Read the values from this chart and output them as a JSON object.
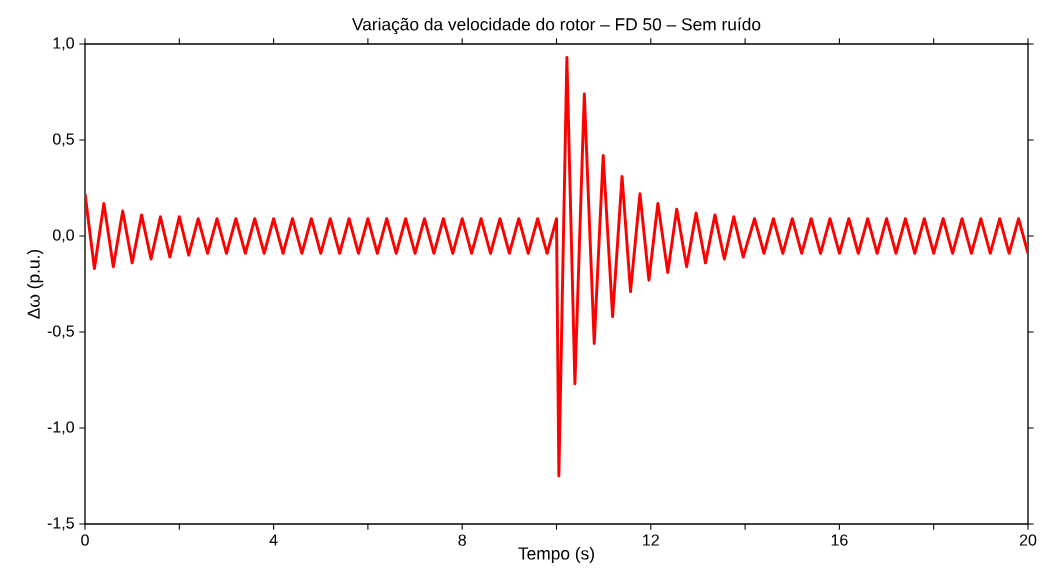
{
  "chart_data": {
    "type": "line",
    "title": "Variação da velocidade do rotor – FD 50 – Sem ruído",
    "xlabel": "Tempo (s)",
    "ylabel": "Δω (p.u.)",
    "x": [
      0,
      0.2,
      0.4,
      0.6,
      0.8,
      1.0,
      1.2,
      1.4,
      1.6,
      1.8,
      2.0,
      2.2,
      2.4,
      2.6,
      2.8,
      3.0,
      3.2,
      3.4,
      3.6,
      3.8,
      4.0,
      4.2,
      4.4,
      4.6,
      4.8,
      5.0,
      5.2,
      5.4,
      5.6,
      5.8,
      6.0,
      6.2,
      6.4,
      6.6,
      6.8,
      7.0,
      7.2,
      7.4,
      7.6,
      7.8,
      8.0,
      8.2,
      8.4,
      8.6,
      8.8,
      9.0,
      9.2,
      9.4,
      9.6,
      9.8,
      10.0,
      10.05,
      10.22,
      10.39,
      10.59,
      10.8,
      10.99,
      11.19,
      11.39,
      11.57,
      11.77,
      11.96,
      12.15,
      12.36,
      12.55,
      12.76,
      12.96,
      13.16,
      13.36,
      13.56,
      13.76,
      13.96,
      14.2,
      14.4,
      14.6,
      14.8,
      15.0,
      15.2,
      15.4,
      15.6,
      15.8,
      16.0,
      16.2,
      16.4,
      16.6,
      16.8,
      17.0,
      17.2,
      17.4,
      17.6,
      17.8,
      18.0,
      18.2,
      18.4,
      18.6,
      18.8,
      19.0,
      19.2,
      19.4,
      19.6,
      19.8,
      20.0
    ],
    "series": [
      {
        "color": "#ff0000",
        "values": [
          0.22,
          -0.17,
          0.17,
          -0.16,
          0.13,
          -0.14,
          0.11,
          -0.12,
          0.1,
          -0.11,
          0.1,
          -0.1,
          0.09,
          -0.09,
          0.09,
          -0.09,
          0.09,
          -0.09,
          0.09,
          -0.09,
          0.09,
          -0.09,
          0.09,
          -0.09,
          0.09,
          -0.09,
          0.09,
          -0.09,
          0.09,
          -0.09,
          0.09,
          -0.09,
          0.09,
          -0.09,
          0.09,
          -0.09,
          0.09,
          -0.09,
          0.09,
          -0.09,
          0.09,
          -0.09,
          0.09,
          -0.09,
          0.09,
          -0.09,
          0.09,
          -0.09,
          0.09,
          -0.09,
          0.09,
          -1.25,
          0.93,
          -0.77,
          0.74,
          -0.56,
          0.42,
          -0.42,
          0.31,
          -0.29,
          0.22,
          -0.23,
          0.17,
          -0.19,
          0.14,
          -0.16,
          0.12,
          -0.14,
          0.11,
          -0.12,
          0.1,
          -0.11,
          0.09,
          -0.09,
          0.09,
          -0.09,
          0.09,
          -0.09,
          0.09,
          -0.09,
          0.09,
          -0.09,
          0.09,
          -0.09,
          0.09,
          -0.09,
          0.09,
          -0.09,
          0.09,
          -0.09,
          0.09,
          -0.09,
          0.09,
          -0.09,
          0.09,
          -0.09,
          0.09,
          -0.09,
          0.09,
          -0.09,
          0.09,
          -0.09
        ]
      }
    ],
    "xlim": [
      0,
      20
    ],
    "ylim": [
      -1.5,
      1.0
    ],
    "xticks": [
      0,
      {
        "value": 2,
        "label": null
      },
      4,
      {
        "value": 6,
        "label": null
      },
      8,
      {
        "value": 10,
        "label": null
      },
      12,
      {
        "value": 14,
        "label": null
      },
      16,
      {
        "value": 18,
        "label": null
      },
      20
    ],
    "yticks": [
      {
        "value": -1.5,
        "label": "-1,5"
      },
      {
        "value": -1.0,
        "label": "-1,0"
      },
      {
        "value": -0.5,
        "label": "-0,5"
      },
      {
        "value": 0.0,
        "label": "0,0"
      },
      {
        "value": 0.5,
        "label": "0,5"
      },
      {
        "value": 1.0,
        "label": "1,0"
      }
    ],
    "grid": false,
    "marker": "none",
    "line_style": "solid"
  }
}
